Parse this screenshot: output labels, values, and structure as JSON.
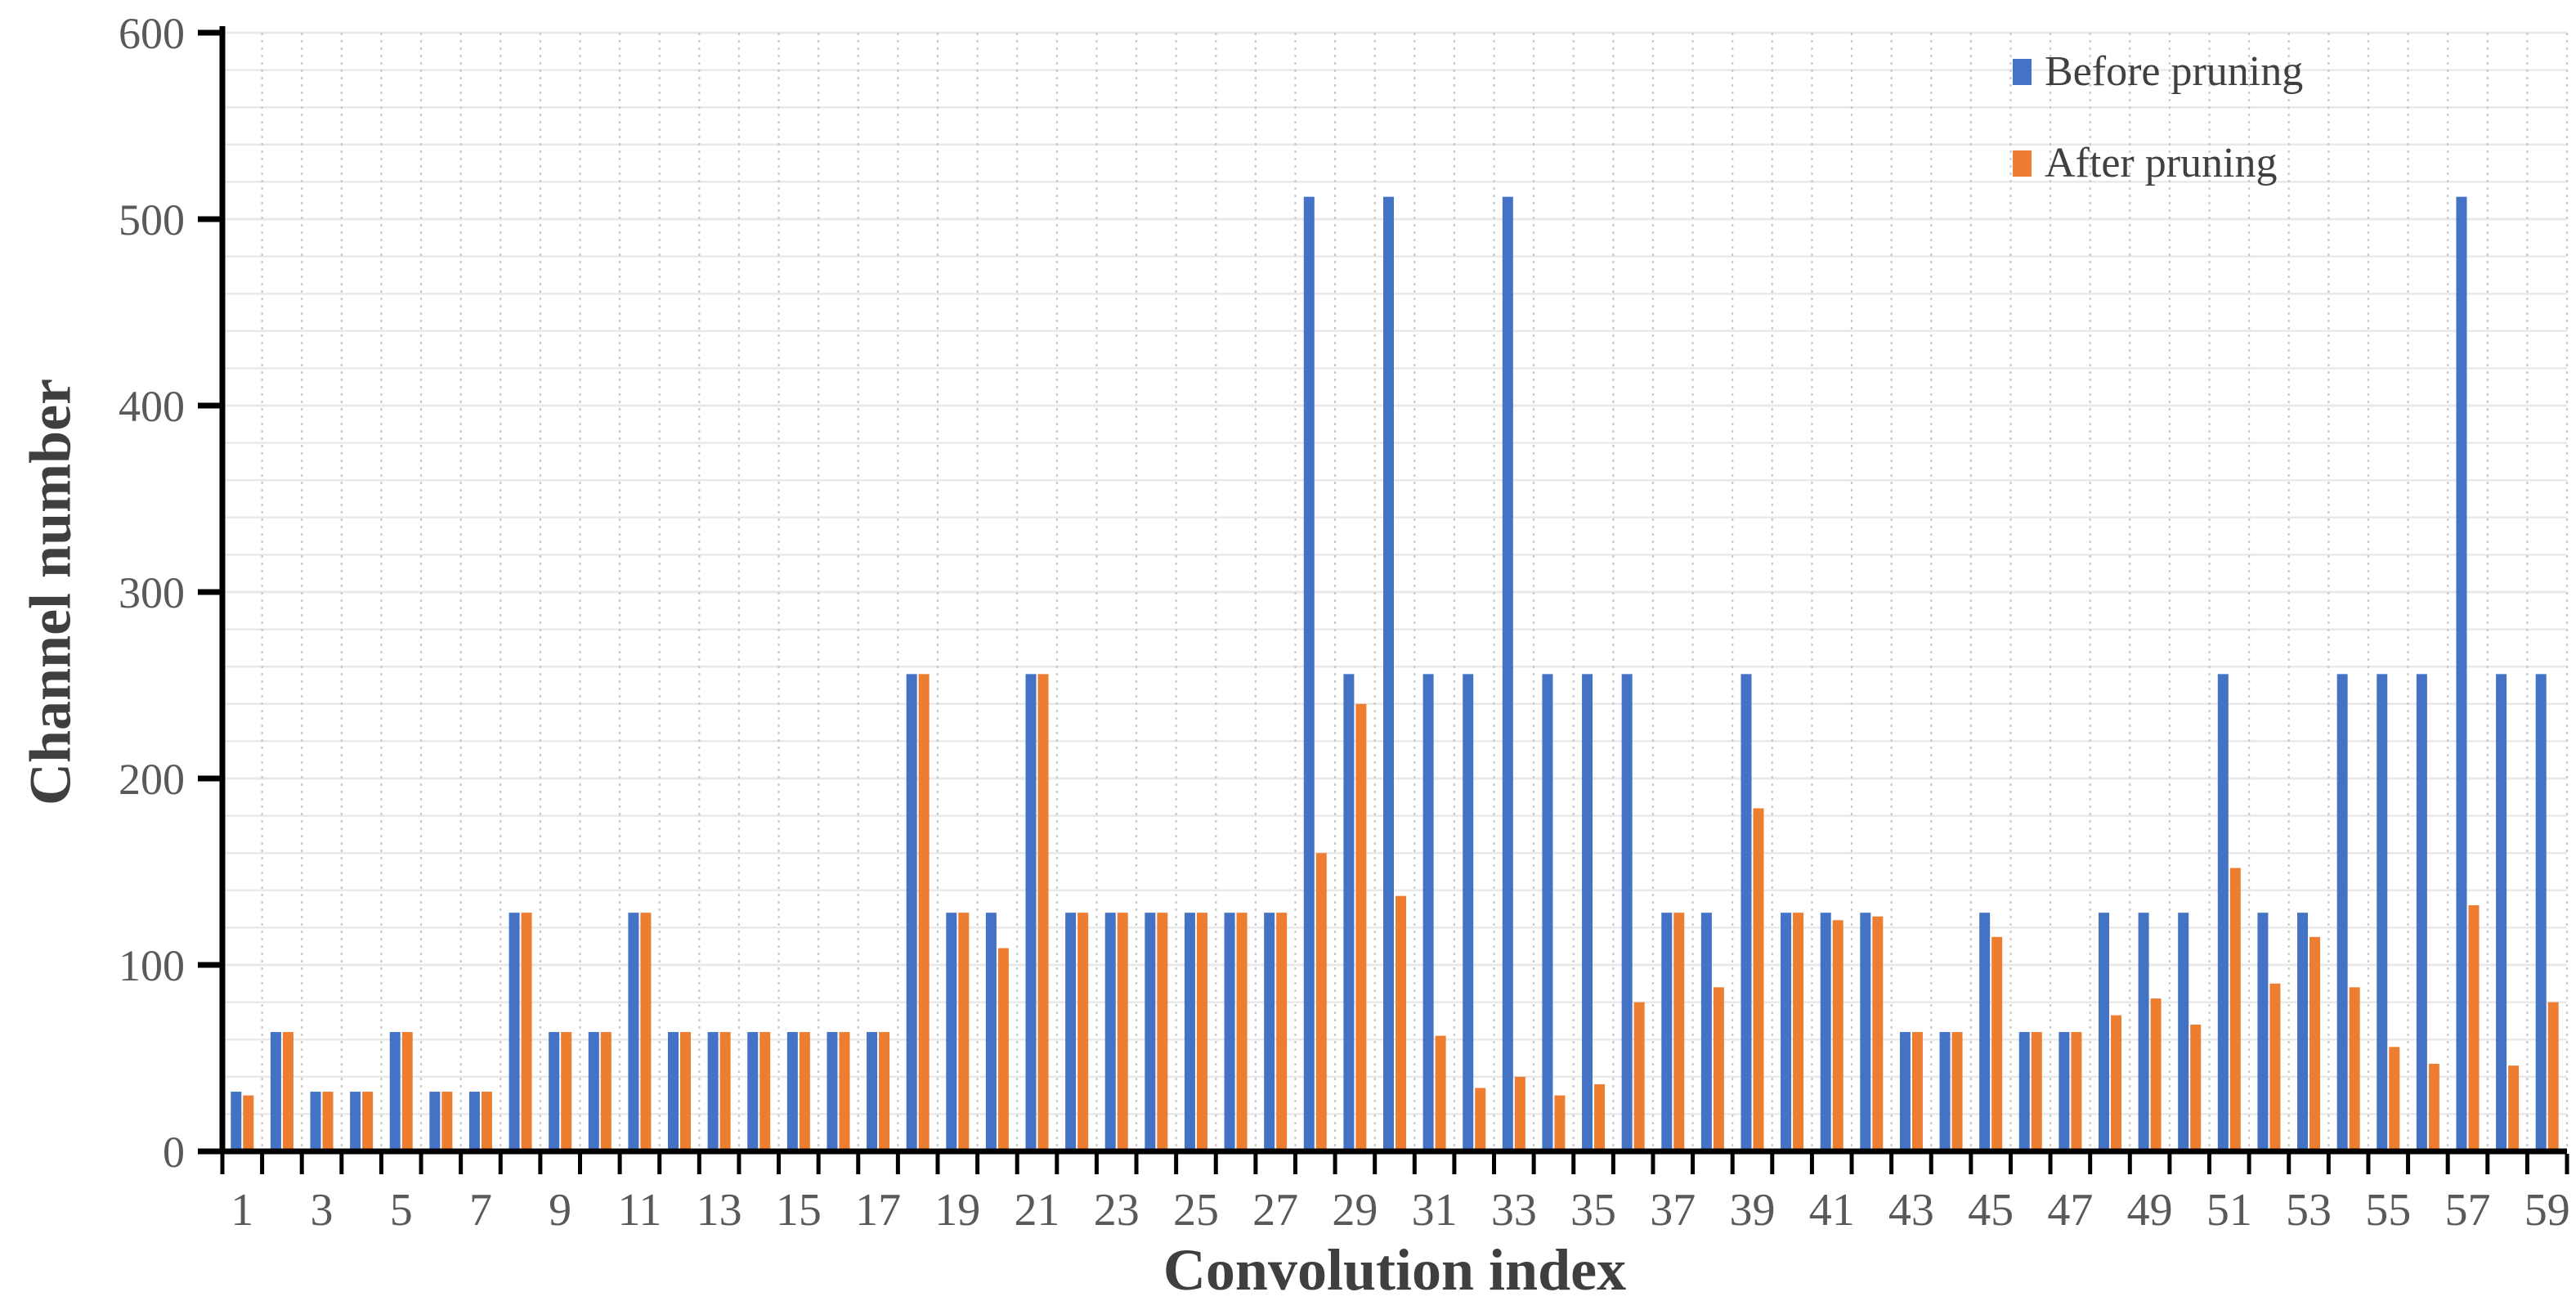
{
  "chart_data": {
    "type": "bar",
    "title": "",
    "xlabel": "Convolution index",
    "ylabel": "Channel number",
    "x": [
      1,
      2,
      3,
      4,
      5,
      6,
      7,
      8,
      9,
      10,
      11,
      12,
      13,
      14,
      15,
      16,
      17,
      18,
      19,
      20,
      21,
      22,
      23,
      24,
      25,
      26,
      27,
      28,
      29,
      30,
      31,
      32,
      33,
      34,
      35,
      36,
      37,
      38,
      39,
      40,
      41,
      42,
      43,
      44,
      45,
      46,
      47,
      48,
      49,
      50,
      51,
      52,
      53,
      54,
      55,
      56,
      57,
      58,
      59
    ],
    "x_tick_labels": [
      "1",
      "3",
      "5",
      "7",
      "9",
      "11",
      "13",
      "15",
      "17",
      "19",
      "21",
      "23",
      "25",
      "27",
      "29",
      "31",
      "33",
      "35",
      "37",
      "39",
      "41",
      "43",
      "45",
      "47",
      "49",
      "51",
      "53",
      "55",
      "57",
      "59"
    ],
    "x_tick_label_interval": 2,
    "series": [
      {
        "name": "Before pruning",
        "color": "#4472C4",
        "values": [
          32,
          64,
          32,
          32,
          64,
          32,
          32,
          128,
          64,
          64,
          128,
          64,
          64,
          64,
          64,
          64,
          64,
          256,
          128,
          128,
          256,
          128,
          128,
          128,
          128,
          128,
          128,
          512,
          256,
          512,
          256,
          256,
          512,
          256,
          256,
          256,
          128,
          128,
          256,
          128,
          128,
          128,
          64,
          64,
          128,
          64,
          64,
          128,
          128,
          128,
          256,
          128,
          128,
          256,
          256,
          256,
          512,
          256,
          256
        ]
      },
      {
        "name": "After pruning",
        "color": "#ED7D31",
        "values": [
          30,
          64,
          32,
          32,
          64,
          32,
          32,
          128,
          64,
          64,
          128,
          64,
          64,
          64,
          64,
          64,
          64,
          256,
          128,
          109,
          256,
          128,
          128,
          128,
          128,
          128,
          128,
          160,
          240,
          137,
          62,
          34,
          40,
          30,
          36,
          80,
          128,
          88,
          184,
          128,
          124,
          126,
          64,
          64,
          115,
          64,
          64,
          73,
          82,
          68,
          152,
          90,
          115,
          88,
          56,
          47,
          132,
          46,
          80
        ]
      }
    ],
    "ylim": [
      0,
      600
    ],
    "y_ticks": [
      0,
      100,
      200,
      300,
      400,
      500,
      600
    ],
    "y_minor_step": 20,
    "grid": {
      "horizontal": "on (minor every 20)",
      "vertical": "on (dashed, every category)",
      "h_color": "#E9E9E9",
      "v_color": "#C9C9C9"
    },
    "legend_position": "top-right",
    "axis_color": "#000000",
    "tick_label_color": "#595959",
    "title_color": "#3f3f3f"
  }
}
